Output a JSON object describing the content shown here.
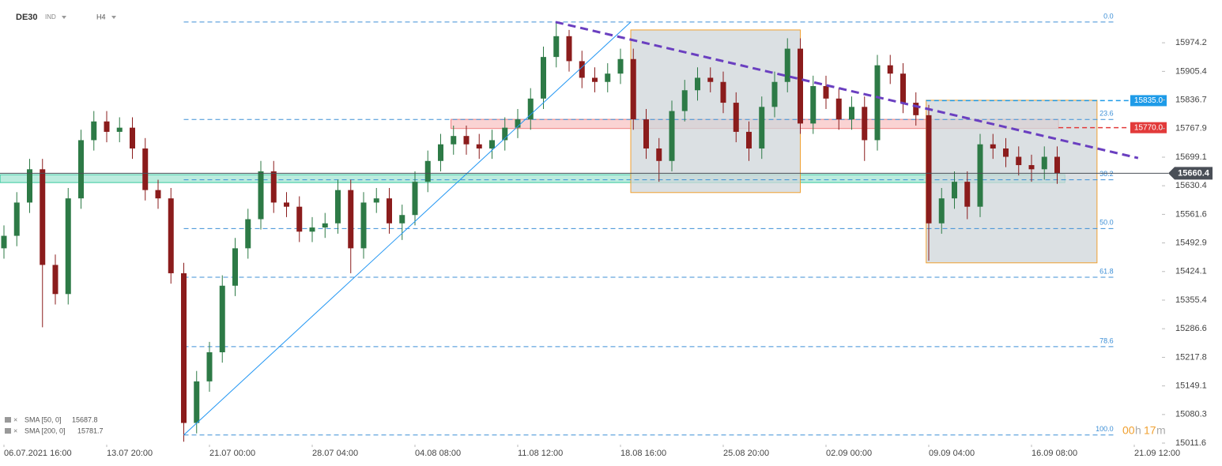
{
  "header": {
    "symbol": "DE30",
    "market": "IND",
    "timeframe": "H4"
  },
  "chart_data": {
    "type": "candlestick",
    "open": [
      15480,
      15510,
      15590,
      15670,
      15440,
      15370,
      15600,
      15740,
      15785,
      15760,
      15770,
      15720,
      15620,
      15600,
      15420,
      15060,
      15160,
      15230,
      15390,
      15480,
      15550,
      15665,
      15590,
      15580,
      15520,
      15530,
      15540,
      15620,
      15480,
      15590,
      15600,
      15540,
      15560,
      15640,
      15690,
      15730,
      15750,
      15730,
      15720,
      15740,
      15770,
      15790,
      15840,
      15940,
      15990,
      15930,
      15890,
      15880,
      15900,
      15935,
      15790,
      15720,
      15690,
      15810,
      15860,
      15890,
      15880,
      15830,
      15760,
      15720,
      15820,
      15880,
      15960,
      15780,
      15870,
      15840,
      15790,
      15820,
      15740,
      15920,
      15900,
      15830,
      15800,
      15540,
      15600,
      15640,
      15580,
      15730,
      15720,
      15700,
      15680,
      15670,
      15700
    ],
    "high": [
      15535,
      15615,
      15695,
      15695,
      15465,
      15625,
      15765,
      15810,
      15810,
      15795,
      15795,
      15745,
      15645,
      15625,
      15445,
      15185,
      15255,
      15415,
      15505,
      15575,
      15690,
      15690,
      15615,
      15605,
      15555,
      15565,
      15645,
      15645,
      15615,
      15625,
      15625,
      15585,
      15665,
      15715,
      15755,
      15775,
      15775,
      15755,
      15765,
      15795,
      15815,
      15865,
      15965,
      16025,
      16005,
      15955,
      15915,
      15925,
      15960,
      15960,
      15815,
      15745,
      15835,
      15885,
      15915,
      15915,
      15905,
      15855,
      15785,
      15845,
      15905,
      15985,
      15985,
      15895,
      15895,
      15865,
      15845,
      15845,
      15945,
      15945,
      15925,
      15855,
      15825,
      15625,
      15665,
      15665,
      15755,
      15755,
      15745,
      15725,
      15705,
      15725,
      15725
    ],
    "low": [
      15455,
      15485,
      15565,
      15290,
      15345,
      15345,
      15575,
      15715,
      15735,
      15735,
      15695,
      15595,
      15575,
      15395,
      15015,
      15035,
      15135,
      15205,
      15365,
      15455,
      15525,
      15565,
      15555,
      15495,
      15495,
      15505,
      15515,
      15420,
      15455,
      15565,
      15515,
      15500,
      15535,
      15615,
      15665,
      15705,
      15705,
      15695,
      15695,
      15715,
      15745,
      15765,
      15815,
      15915,
      15905,
      15865,
      15855,
      15855,
      15875,
      15765,
      15695,
      15640,
      15665,
      15785,
      15835,
      15855,
      15805,
      15735,
      15690,
      15695,
      15795,
      15855,
      15755,
      15755,
      15815,
      15765,
      15765,
      15690,
      15715,
      15875,
      15805,
      15775,
      15450,
      15515,
      15575,
      15550,
      15555,
      15695,
      15675,
      15655,
      15640,
      15645,
      15635
    ],
    "close": [
      15510,
      15590,
      15670,
      15440,
      15370,
      15600,
      15740,
      15785,
      15760,
      15770,
      15720,
      15620,
      15600,
      15420,
      15060,
      15160,
      15230,
      15390,
      15480,
      15550,
      15665,
      15590,
      15580,
      15520,
      15530,
      15540,
      15620,
      15480,
      15590,
      15600,
      15540,
      15560,
      15640,
      15690,
      15730,
      15750,
      15730,
      15720,
      15740,
      15770,
      15790,
      15840,
      15940,
      15990,
      15930,
      15890,
      15880,
      15900,
      15935,
      15790,
      15720,
      15690,
      15810,
      15860,
      15890,
      15880,
      15830,
      15760,
      15720,
      15820,
      15880,
      15960,
      15780,
      15870,
      15840,
      15790,
      15820,
      15740,
      15920,
      15900,
      15830,
      15800,
      15540,
      15600,
      15640,
      15580,
      15730,
      15720,
      15700,
      15680,
      15670,
      15700,
      15660
    ],
    "up_color": "#2d7a46",
    "down_color": "#8b1c1c",
    "xlim": [
      0,
      88
    ],
    "xticks": [
      {
        "value": 0,
        "label": "06.07.2021 16:00"
      },
      {
        "value": 8,
        "label": "13.07 20:00"
      },
      {
        "value": 16,
        "label": "21.07 00:00"
      },
      {
        "value": 24,
        "label": "28.07 04:00"
      },
      {
        "value": 32,
        "label": "04.08 08:00"
      },
      {
        "value": 40,
        "label": "11.08 12:00"
      },
      {
        "value": 48,
        "label": "18.08 16:00"
      },
      {
        "value": 56,
        "label": "25.08 20:00"
      },
      {
        "value": 64,
        "label": "02.09 00:00"
      },
      {
        "value": 72,
        "label": "09.09 04:00"
      },
      {
        "value": 80,
        "label": "16.09 08:00"
      },
      {
        "value": 88,
        "label": "21.09 12:00"
      }
    ],
    "ylim": [
      15004,
      16077
    ],
    "yticks": [
      15974.2,
      15905.4,
      15836.7,
      15767.9,
      15699.1,
      15630.4,
      15561.6,
      15492.9,
      15424.1,
      15355.4,
      15286.6,
      15217.8,
      15149.1,
      15080.3,
      15011.6
    ],
    "grid": false,
    "fibonacci": {
      "color": "#3d8fd6",
      "high": 16024,
      "low": 15031,
      "start": 14,
      "end": 86.5,
      "levels": [
        {
          "value": 0,
          "label": "0.0"
        },
        23.6,
        38.2,
        {
          "value": 50,
          "label": "50.0"
        },
        61.8,
        78.6,
        {
          "value": 100,
          "label": "100.0"
        }
      ]
    },
    "zones": [
      {
        "from": 34.8,
        "to": 82.1,
        "top": 15790,
        "bottom": 15768,
        "color": "#f08080"
      },
      {
        "from": -0.3,
        "to": 82.6,
        "top": 15657,
        "bottom": 15638,
        "color": "#3cc9a0"
      }
    ],
    "boxes": [
      {
        "from": 48.8,
        "to": 62,
        "top": 16005,
        "bottom": 15614
      },
      {
        "from": 71.8,
        "to": 85.1,
        "top": 15836,
        "bottom": 15445
      }
    ],
    "box_fill": "#cfd5da",
    "box_stroke": "#f0a030",
    "trendlines": [
      {
        "x": [
          14,
          48.8
        ],
        "y": [
          15031,
          16024
        ],
        "color": "#2196f3",
        "dashed": false
      },
      {
        "x": [
          42.95,
          88.3
        ],
        "y": [
          16024,
          15697
        ],
        "color": "#6a3fc0",
        "dashed": true
      }
    ],
    "levels": [
      {
        "value": 15835,
        "label": "15835.0",
        "color": "#1e9be8",
        "from": 71.8
      },
      {
        "value": 15770,
        "label": "15770.0",
        "color": "#e23a3a",
        "from": 82.1
      }
    ],
    "last_price": {
      "value": 15660.4,
      "color": "#4a4f57"
    },
    "sma": [
      {
        "label": "SMA [50, 0]",
        "value": 15687.8
      },
      {
        "label": "SMA [200, 0]",
        "value": 15781.7
      }
    ],
    "timer": [
      "00",
      "h",
      "17",
      "m"
    ]
  }
}
